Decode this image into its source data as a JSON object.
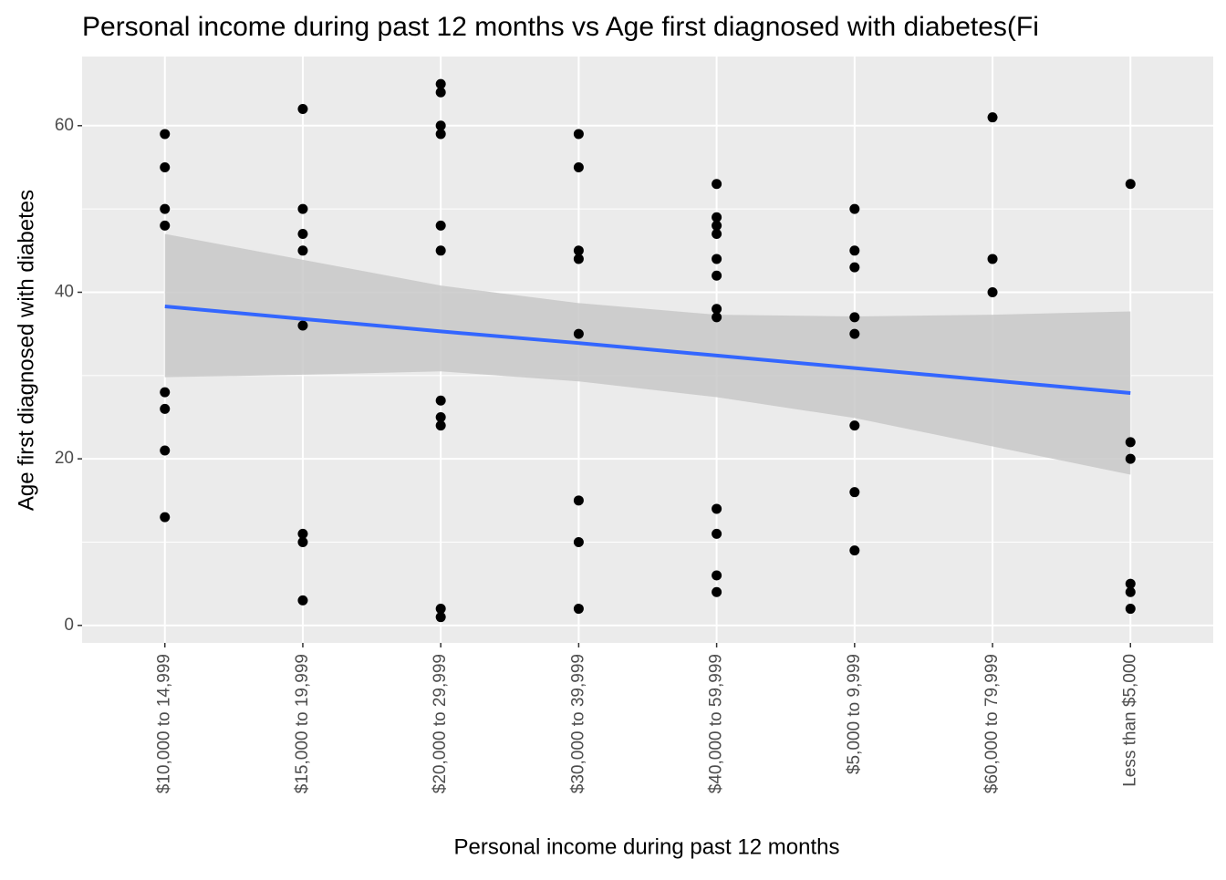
{
  "chart_data": {
    "type": "scatter",
    "title": "Personal income during past 12 months vs Age first diagnosed with diabetes(Fi",
    "x_label": "Personal income during past 12 months",
    "y_label": "Age first diagnosed with diabetes",
    "categories": [
      "$10,000 to 14,999",
      "$15,000 to 19,999",
      "$20,000 to 29,999",
      "$30,000 to 39,999",
      "$40,000 to 59,999",
      "$5,000 to 9,999",
      "$60,000 to 79,999",
      "Less than $5,000"
    ],
    "points": {
      "color": "#000000",
      "x": [
        "$10,000 to 14,999",
        "$10,000 to 14,999",
        "$10,000 to 14,999",
        "$10,000 to 14,999",
        "$10,000 to 14,999",
        "$10,000 to 14,999",
        "$10,000 to 14,999",
        "$10,000 to 14,999",
        "$15,000 to 19,999",
        "$15,000 to 19,999",
        "$15,000 to 19,999",
        "$15,000 to 19,999",
        "$15,000 to 19,999",
        "$15,000 to 19,999",
        "$15,000 to 19,999",
        "$15,000 to 19,999",
        "$20,000 to 29,999",
        "$20,000 to 29,999",
        "$20,000 to 29,999",
        "$20,000 to 29,999",
        "$20,000 to 29,999",
        "$20,000 to 29,999",
        "$20,000 to 29,999",
        "$20,000 to 29,999",
        "$20,000 to 29,999",
        "$20,000 to 29,999",
        "$20,000 to 29,999",
        "$30,000 to 39,999",
        "$30,000 to 39,999",
        "$30,000 to 39,999",
        "$30,000 to 39,999",
        "$30,000 to 39,999",
        "$30,000 to 39,999",
        "$30,000 to 39,999",
        "$30,000 to 39,999",
        "$40,000 to 59,999",
        "$40,000 to 59,999",
        "$40,000 to 59,999",
        "$40,000 to 59,999",
        "$40,000 to 59,999",
        "$40,000 to 59,999",
        "$40,000 to 59,999",
        "$40,000 to 59,999",
        "$40,000 to 59,999",
        "$40,000 to 59,999",
        "$40,000 to 59,999",
        "$40,000 to 59,999",
        "$5,000 to 9,999",
        "$5,000 to 9,999",
        "$5,000 to 9,999",
        "$5,000 to 9,999",
        "$5,000 to 9,999",
        "$5,000 to 9,999",
        "$5,000 to 9,999",
        "$5,000 to 9,999",
        "$60,000 to 79,999",
        "$60,000 to 79,999",
        "$60,000 to 79,999",
        "Less than $5,000",
        "Less than $5,000",
        "Less than $5,000",
        "Less than $5,000",
        "Less than $5,000",
        "Less than $5,000"
      ],
      "y": [
        59,
        55,
        50,
        48,
        28,
        26,
        21,
        13,
        62,
        50,
        47,
        45,
        36,
        11,
        10,
        3,
        65,
        64,
        60,
        59,
        48,
        45,
        27,
        25,
        24,
        2,
        1,
        59,
        55,
        45,
        44,
        35,
        15,
        10,
        2,
        53,
        49,
        48,
        47,
        44,
        42,
        38,
        37,
        14,
        11,
        6,
        4,
        50,
        45,
        43,
        37,
        35,
        24,
        16,
        9,
        61,
        44,
        40,
        53,
        22,
        20,
        5,
        4,
        2
      ]
    },
    "fit": {
      "color": "#3366ff",
      "band_color": "#c8c8c8",
      "values": [
        38.3,
        36.8,
        35.3,
        33.9,
        32.4,
        30.9,
        29.4,
        27.9
      ],
      "upper": [
        47.0,
        43.9,
        40.8,
        38.7,
        37.3,
        37.1,
        37.3,
        37.7
      ],
      "lower": [
        29.8,
        30.1,
        30.5,
        29.3,
        27.4,
        24.9,
        21.5,
        18.1
      ]
    },
    "ylim": [
      -2.1,
      68.3
    ],
    "yticks": [
      0,
      20,
      40,
      60
    ],
    "yminor": [
      10,
      30,
      50
    ],
    "grid": true
  }
}
